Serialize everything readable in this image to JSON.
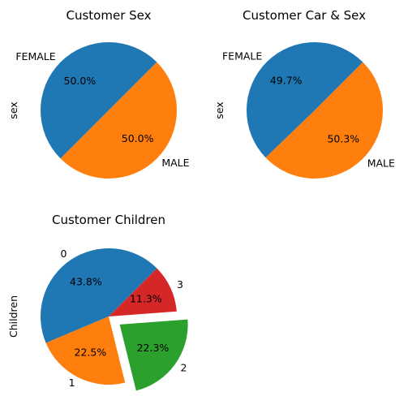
{
  "chart_data": [
    {
      "type": "pie",
      "title": "Customer Sex",
      "ylabel": "sex",
      "categories": [
        "FEMALE",
        "MALE"
      ],
      "values": [
        50.0,
        50.0
      ],
      "percent_labels": [
        "50.0%",
        "50.0%"
      ],
      "colors": [
        "#1f77b4",
        "#ff7f0e"
      ],
      "explode": [
        0,
        0
      ],
      "start_angle_deg": 45
    },
    {
      "type": "pie",
      "title": "Customer Car & Sex",
      "ylabel": "sex",
      "categories": [
        "FEMALE",
        "MALE"
      ],
      "values": [
        49.7,
        50.3
      ],
      "percent_labels": [
        "49.7%",
        "50.3%"
      ],
      "colors": [
        "#1f77b4",
        "#ff7f0e"
      ],
      "explode": [
        0,
        0
      ],
      "start_angle_deg": 45
    },
    {
      "type": "pie",
      "title": "Customer Children",
      "ylabel": "Children",
      "categories": [
        "0",
        "1",
        "2",
        "3"
      ],
      "values": [
        43.8,
        22.5,
        22.3,
        11.3
      ],
      "percent_labels": [
        "43.8%",
        "22.5%",
        "22.3%",
        "11.3%"
      ],
      "colors": [
        "#1f77b4",
        "#ff7f0e",
        "#2ca02c",
        "#d62728"
      ],
      "explode": [
        0,
        0,
        0.2,
        0
      ],
      "start_angle_deg": 45
    }
  ]
}
